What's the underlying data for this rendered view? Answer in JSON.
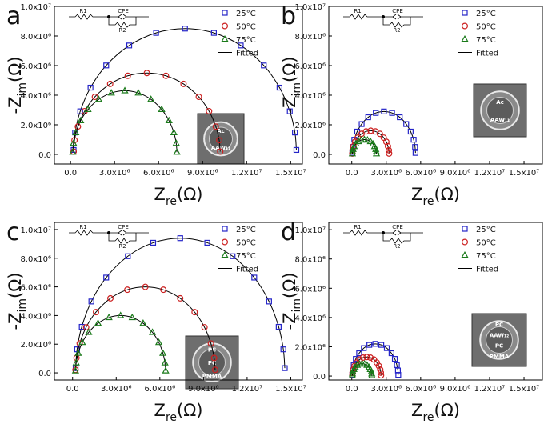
{
  "chart_data": [
    {
      "type": "scatter",
      "panel_label": "a",
      "xlabel": {
        "main": "Z",
        "sub": "re",
        "unit": "(Ω)"
      },
      "ylabel": {
        "main": "-Z",
        "sub": "im",
        "unit": "(Ω)"
      },
      "xlim": [
        -1100000.0,
        15800000.0
      ],
      "ylim": [
        -650000.0,
        10000000.0
      ],
      "xticks": [
        {
          "value": 0,
          "label": "0.0"
        },
        {
          "value": 3000000.0,
          "label": "3.0x10⁶"
        },
        {
          "value": 6000000.0,
          "label": "6.0x10⁶"
        },
        {
          "value": 9000000.0,
          "label": "9.0x10⁶"
        },
        {
          "value": 12000000.0,
          "label": "1.2x10⁷"
        },
        {
          "value": 15000000.0,
          "label": "1.5x10⁷"
        }
      ],
      "yticks": [
        {
          "value": 0,
          "label": "0.0"
        },
        {
          "value": 2000000.0,
          "label": "2.0x10⁶"
        },
        {
          "value": 4000000.0,
          "label": "4.0x10⁶"
        },
        {
          "value": 6000000.0,
          "label": "6.0x10⁶"
        },
        {
          "value": 8000000.0,
          "label": "8.0x10⁶"
        },
        {
          "value": 10000000.0,
          "label": "1.0x10⁷"
        }
      ],
      "legend": "upper right",
      "fit_label": "Fitted",
      "circuit": {
        "r1": "R1",
        "cpe": "CPE",
        "r2": "R2"
      },
      "inset_labels": [
        "Ac",
        "AAW₁₁"
      ],
      "series": [
        {
          "name": "25°C",
          "color": "#2424c8",
          "marker": "square",
          "x": [
            210000.0,
            310000.0,
            660000.0,
            1360000.0,
            2430000.0,
            4000000.0,
            5830000.0,
            7800000.0,
            9770000.0,
            11600000.0,
            13170000.0,
            14240000.0,
            14940000.0,
            15290000.0,
            15390000.0
          ],
          "values": [
            300000.0,
            1480000.0,
            2910000.0,
            4510000.0,
            6010000.0,
            7360000.0,
            8210000.0,
            8500000.0,
            8210000.0,
            7360000.0,
            6010000.0,
            4510000.0,
            2910000.0,
            1480000.0,
            300000.0
          ]
        },
        {
          "name": "50°C",
          "color": "#cc2020",
          "marker": "circle",
          "x": [
            210000.0,
            270000.0,
            500000.0,
            960000.0,
            1660000.0,
            2700000.0,
            3900000.0,
            5200000.0,
            6500000.0,
            7700000.0,
            8740000.0,
            9440000.0,
            9900000.0,
            10130000.0,
            10200000.0
          ],
          "values": [
            190000.0,
            960000.0,
            1880000.0,
            2920000.0,
            3890000.0,
            4760000.0,
            5310000.0,
            5500000.0,
            5310000.0,
            4760000.0,
            3890000.0,
            2920000.0,
            1880000.0,
            960000.0,
            190000.0
          ]
        },
        {
          "name": "75°C",
          "color": "#1a7a1a",
          "marker": "triangle",
          "x": [
            150000.0,
            200000.0,
            360000.0,
            690000.0,
            1190000.0,
            1920000.0,
            2780000.0,
            3700000.0,
            4620000.0,
            5480000.0,
            6210000.0,
            6710000.0,
            7040000.0,
            7200000.0,
            7250000.0
          ],
          "values": [
            150000.0,
            750000.0,
            1470000.0,
            2280000.0,
            3040000.0,
            3720000.0,
            4150000.0,
            4300000.0,
            4150000.0,
            3720000.0,
            3040000.0,
            2280000.0,
            1470000.0,
            750000.0,
            150000.0
          ]
        }
      ]
    },
    {
      "type": "scatter",
      "panel_label": "b",
      "xlabel": {
        "main": "Z",
        "sub": "re",
        "unit": "(Ω)"
      },
      "ylabel": {
        "main": "-Z",
        "sub": "im",
        "unit": "(Ω)"
      },
      "xlim": [
        -2000000.0,
        16600000.0
      ],
      "ylim": [
        -650000.0,
        10000000.0
      ],
      "xticks": [
        {
          "value": 0,
          "label": "0.0"
        },
        {
          "value": 3000000.0,
          "label": "3.0x10⁶"
        },
        {
          "value": 6000000.0,
          "label": "6.0x10⁶"
        },
        {
          "value": 9000000.0,
          "label": "9.0x10⁶"
        },
        {
          "value": 12000000.0,
          "label": "1.2x10⁷"
        },
        {
          "value": 15000000.0,
          "label": "1.5x10⁷"
        }
      ],
      "yticks": [
        {
          "value": 0,
          "label": "0.0"
        },
        {
          "value": 2000000.0,
          "label": "2.0x10⁶"
        },
        {
          "value": 4000000.0,
          "label": "4.0x10⁶"
        },
        {
          "value": 6000000.0,
          "label": "6.0x10⁶"
        },
        {
          "value": 8000000.0,
          "label": "8.0x10⁶"
        },
        {
          "value": 10000000.0,
          "label": "1.0x10⁷"
        }
      ],
      "legend": "upper right",
      "fit_label": "Fitted",
      "circuit": {
        "r1": "R1",
        "cpe": "CPE",
        "r2": "R2"
      },
      "inset_labels": [
        "Ac",
        "AAW₁₁"
      ],
      "series": [
        {
          "name": "25°C",
          "color": "#2424c8",
          "marker": "square",
          "x": [
            50000.0,
            90000.0,
            220000.0,
            470000.0,
            860000.0,
            1430000.0,
            2090000.0,
            2800000.0,
            3510000.0,
            4180000.0,
            4740000.0,
            5130000.0,
            5390000.0,
            5510000.0,
            5550000.0
          ],
          "values": [
            100000.0,
            500000.0,
            990000.0,
            1540000.0,
            2050000.0,
            2510000.0,
            2800000.0,
            2900000.0,
            2800000.0,
            2510000.0,
            2050000.0,
            1540000.0,
            990000.0,
            500000.0,
            100000.0
          ]
        },
        {
          "name": "50°C",
          "color": "#cc2020",
          "marker": "circle",
          "x": [
            50000.0,
            70000.0,
            150000.0,
            290000.0,
            520000.0,
            850000.0,
            1240000.0,
            1650000.0,
            2060000.0,
            2450000.0,
            2780000.0,
            3010000.0,
            3150000.0,
            3230000.0,
            3250000.0
          ],
          "values": [
            60000.0,
            280000.0,
            550000.0,
            850000.0,
            1130000.0,
            1390000.0,
            1550000.0,
            1600000.0,
            1550000.0,
            1390000.0,
            1130000.0,
            850000.0,
            550000.0,
            280000.0,
            60000.0
          ]
        },
        {
          "name": "75°C",
          "color": "#1a7a1a",
          "marker": "triangle",
          "x": [
            50000.0,
            70000.0,
            110000.0,
            210000.0,
            360000.0,
            580000.0,
            830000.0,
            1100000.0,
            1370000.0,
            1630000.0,
            1840000.0,
            1990000.0,
            2090000.0,
            2130000.0,
            2150000.0
          ],
          "values": [
            40000.0,
            170000.0,
            340000.0,
            530000.0,
            710000.0,
            870000.0,
            970000.0,
            1000000.0,
            970000.0,
            870000.0,
            710000.0,
            530000.0,
            340000.0,
            170000.0,
            40000.0
          ]
        }
      ]
    },
    {
      "type": "scatter",
      "panel_label": "c",
      "xlabel": {
        "main": "Z",
        "sub": "re",
        "unit": "(Ω)"
      },
      "ylabel": {
        "main": "-Z",
        "sub": "im",
        "unit": "(Ω)"
      },
      "xlim": [
        -1250000.0,
        15800000.0
      ],
      "ylim": [
        -500000.0,
        10500000.0
      ],
      "xticks": [
        {
          "value": 0,
          "label": "0.0"
        },
        {
          "value": 3000000.0,
          "label": "3.0x10⁶"
        },
        {
          "value": 6000000.0,
          "label": "6.0x10⁶"
        },
        {
          "value": 9000000.0,
          "label": "9.0x10⁶"
        },
        {
          "value": 12000000.0,
          "label": "1.2x10⁷"
        },
        {
          "value": 15000000.0,
          "label": "1.5x10⁷"
        }
      ],
      "yticks": [
        {
          "value": 0,
          "label": "0.0"
        },
        {
          "value": 2000000.0,
          "label": "2.0x10⁶"
        },
        {
          "value": 4000000.0,
          "label": "4.0x10⁶"
        },
        {
          "value": 6000000.0,
          "label": "6.0x10⁶"
        },
        {
          "value": 8000000.0,
          "label": "8.0x10⁶"
        },
        {
          "value": 10000000.0,
          "label": "1.0x10⁷"
        }
      ],
      "legend": "upper right",
      "fit_label": "Fitted",
      "circuit": {
        "r1": "R1",
        "cpe": "CPE",
        "r2": "R2"
      },
      "inset_labels": [
        "PC",
        "PC",
        "PMMA"
      ],
      "series": [
        {
          "name": "25°C",
          "color": "#2424c8",
          "marker": "square",
          "x": [
            210000.0,
            310000.0,
            630000.0,
            1290000.0,
            2310000.0,
            3800000.0,
            5540000.0,
            7400000.0,
            9260000.0,
            11000000.0,
            12490000.0,
            13510000.0,
            14170000.0,
            14490000.0,
            14590000.0
          ],
          "values": [
            330000.0,
            1640000.0,
            3210000.0,
            4980000.0,
            6650000.0,
            8140000.0,
            9080000.0,
            9400000.0,
            9080000.0,
            8140000.0,
            6650000.0,
            4980000.0,
            3210000.0,
            1640000.0,
            330000.0
          ]
        },
        {
          "name": "50°C",
          "color": "#cc2020",
          "marker": "circle",
          "x": [
            200000.0,
            270000.0,
            490000.0,
            930000.0,
            1610000.0,
            2600000.0,
            3760000.0,
            5000000.0,
            6240000.0,
            7400000.0,
            8390000.0,
            9070000.0,
            9510000.0,
            9730000.0,
            9800000.0
          ],
          "values": [
            210000.0,
            1040000.0,
            2050000.0,
            3180000.0,
            4240000.0,
            5200000.0,
            5800000.0,
            6000000.0,
            5800000.0,
            5200000.0,
            4240000.0,
            3180000.0,
            2050000.0,
            1040000.0,
            210000.0
          ]
        },
        {
          "name": "75°C",
          "color": "#1a7a1a",
          "marker": "triangle",
          "x": [
            200000.0,
            250000.0,
            390000.0,
            670000.0,
            1110000.0,
            1750000.0,
            2500000.0,
            3300000.0,
            4100000.0,
            4850000.0,
            5490000.0,
            5930000.0,
            6210000.0,
            6350000.0,
            6400000.0
          ],
          "values": [
            140000.0,
            700000.0,
            1370000.0,
            2120000.0,
            2830000.0,
            3460000.0,
            3860000.0,
            4000000.0,
            3860000.0,
            3460000.0,
            2830000.0,
            2120000.0,
            1370000.0,
            700000.0,
            140000.0
          ]
        }
      ]
    },
    {
      "type": "scatter",
      "panel_label": "d",
      "xlabel": {
        "main": "Z",
        "sub": "re",
        "unit": "(Ω)"
      },
      "ylabel": {
        "main": "-Z",
        "sub": "im",
        "unit": "(Ω)"
      },
      "xlim": [
        -2000000.0,
        16600000.0
      ],
      "ylim": [
        -270000.0,
        10500000.0
      ],
      "xticks": [
        {
          "value": 0,
          "label": "0.0"
        },
        {
          "value": 3000000.0,
          "label": "3.0x10⁶"
        },
        {
          "value": 6000000.0,
          "label": "6.0x10⁶"
        },
        {
          "value": 9000000.0,
          "label": "9.0x10⁶"
        },
        {
          "value": 12000000.0,
          "label": "1.2x10⁷"
        },
        {
          "value": 15000000.0,
          "label": "1.5x10⁷"
        }
      ],
      "yticks": [
        {
          "value": 0,
          "label": "0.0"
        },
        {
          "value": 2000000.0,
          "label": "2.0x10⁶"
        },
        {
          "value": 4000000.0,
          "label": "4.0x10⁶"
        },
        {
          "value": 6000000.0,
          "label": "6.0x10⁶"
        },
        {
          "value": 8000000.0,
          "label": "8.0x10⁶"
        },
        {
          "value": 10000000.0,
          "label": "1.0x10⁷"
        }
      ],
      "legend": "upper right",
      "fit_label": "Fitted",
      "circuit": {
        "r1": "R1",
        "cpe": "CPE",
        "r2": "R2"
      },
      "inset_labels": [
        "PC",
        "AAW₁₂",
        "PC",
        "PMMA"
      ],
      "series": [
        {
          "name": "25°C",
          "color": "#2424c8",
          "marker": "square",
          "x": [
            50000.0,
            80000.0,
            170000.0,
            350000.0,
            640000.0,
            1050000.0,
            1530000.0,
            2050000.0,
            2570000.0,
            3050000.0,
            3460000.0,
            3750000.0,
            3930000.0,
            4020000.0,
            4050000.0
          ],
          "values": [
            80000.0,
            380000.0,
            750000.0,
            1170000.0,
            1560000.0,
            1910000.0,
            2130000.0,
            2200000.0,
            2130000.0,
            1910000.0,
            1560000.0,
            1170000.0,
            750000.0,
            380000.0,
            80000.0
          ]
        },
        {
          "name": "50°C",
          "color": "#cc2020",
          "marker": "circle",
          "x": [
            50000.0,
            70000.0,
            130000.0,
            240000.0,
            420000.0,
            680000.0,
            980000.0,
            1300000.0,
            1620000.0,
            1930000.0,
            2180000.0,
            2360000.0,
            2480000.0,
            2530000.0,
            2550000.0
          ],
          "values": [
            50000.0,
            230000.0,
            440000.0,
            690000.0,
            920000.0,
            1130000.0,
            1260000.0,
            1300000.0,
            1260000.0,
            1130000.0,
            920000.0,
            690000.0,
            440000.0,
            230000.0,
            50000.0
          ]
        },
        {
          "name": "75°C",
          "color": "#1a7a1a",
          "marker": "triangle",
          "x": [
            50000.0,
            60000.0,
            100000.0,
            180000.0,
            300000.0,
            480000.0,
            680000.0,
            900000.0,
            1120000.0,
            1330000.0,
            1500000.0,
            1620000.0,
            1700000.0,
            1740000.0,
            1750000.0
          ],
          "values": [
            30000.0,
            150000.0,
            290000.0,
            450000.0,
            600000.0,
            740000.0,
            820000.0,
            850000.0,
            820000.0,
            740000.0,
            600000.0,
            450000.0,
            290000.0,
            150000.0,
            30000.0
          ]
        }
      ]
    }
  ]
}
